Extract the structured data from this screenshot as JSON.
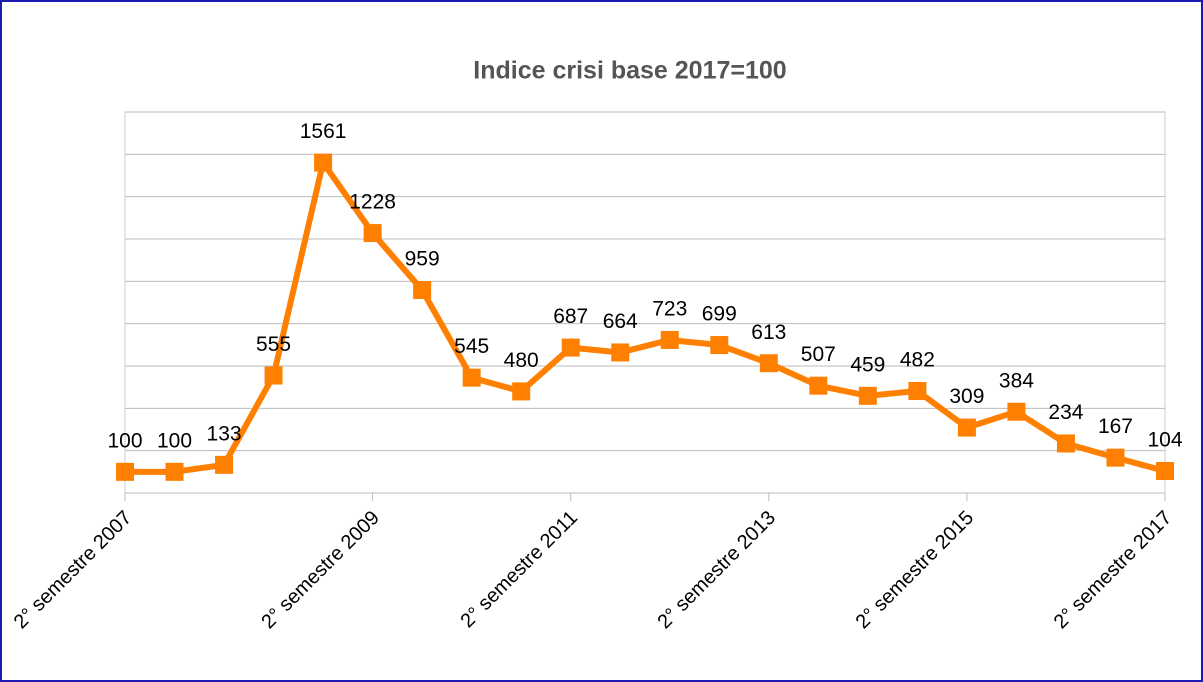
{
  "chart_data": {
    "type": "line",
    "title": "Indice crisi base 2017=100",
    "categories": [
      "2° semestre 2007",
      null,
      null,
      null,
      null,
      "2° semestre 2009",
      null,
      null,
      null,
      "2° semestre 2011",
      null,
      null,
      null,
      "2° semestre 2013",
      null,
      null,
      null,
      "2° semestre 2015",
      null,
      null,
      null,
      "2° semestre 2017"
    ],
    "series": [
      {
        "name": "Indice crisi",
        "color": "#ff8000",
        "values": [
          100,
          100,
          133,
          555,
          1561,
          1228,
          959,
          545,
          480,
          687,
          664,
          723,
          699,
          613,
          507,
          459,
          482,
          309,
          384,
          234,
          167,
          104
        ]
      }
    ],
    "ylim": [
      0,
      1800
    ],
    "yticks": [
      0,
      200,
      400,
      600,
      800,
      1000,
      1200,
      1400,
      1600,
      1800
    ],
    "grid": true
  }
}
